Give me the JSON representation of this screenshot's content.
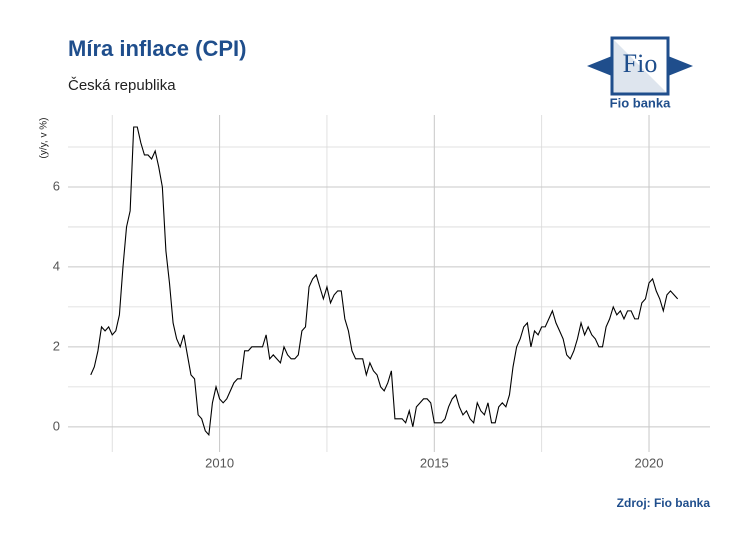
{
  "chart_data": {
    "type": "line",
    "title": "Míra inflace (CPI)",
    "subtitle": "Česká republika",
    "y_label": "(y/y, v %)",
    "source": "Zdroj: Fio banka",
    "logo": {
      "mark": "Fio",
      "name": "Fio banka"
    },
    "x": [
      2007,
      2007.083,
      2007.167,
      2007.25,
      2007.333,
      2007.417,
      2007.5,
      2007.583,
      2007.667,
      2007.75,
      2007.833,
      2007.917,
      2008,
      2008.083,
      2008.167,
      2008.25,
      2008.333,
      2008.417,
      2008.5,
      2008.583,
      2008.667,
      2008.75,
      2008.833,
      2008.917,
      2009,
      2009.083,
      2009.167,
      2009.25,
      2009.333,
      2009.417,
      2009.5,
      2009.583,
      2009.667,
      2009.75,
      2009.833,
      2009.917,
      2010,
      2010.083,
      2010.167,
      2010.25,
      2010.333,
      2010.417,
      2010.5,
      2010.583,
      2010.667,
      2010.75,
      2010.833,
      2010.917,
      2011,
      2011.083,
      2011.167,
      2011.25,
      2011.333,
      2011.417,
      2011.5,
      2011.583,
      2011.667,
      2011.75,
      2011.833,
      2011.917,
      2012,
      2012.083,
      2012.167,
      2012.25,
      2012.333,
      2012.417,
      2012.5,
      2012.583,
      2012.667,
      2012.75,
      2012.833,
      2012.917,
      2013,
      2013.083,
      2013.167,
      2013.25,
      2013.333,
      2013.417,
      2013.5,
      2013.583,
      2013.667,
      2013.75,
      2013.833,
      2013.917,
      2014,
      2014.083,
      2014.167,
      2014.25,
      2014.333,
      2014.417,
      2014.5,
      2014.583,
      2014.667,
      2014.75,
      2014.833,
      2014.917,
      2015,
      2015.083,
      2015.167,
      2015.25,
      2015.333,
      2015.417,
      2015.5,
      2015.583,
      2015.667,
      2015.75,
      2015.833,
      2015.917,
      2016,
      2016.083,
      2016.167,
      2016.25,
      2016.333,
      2016.417,
      2016.5,
      2016.583,
      2016.667,
      2016.75,
      2016.833,
      2016.917,
      2017,
      2017.083,
      2017.167,
      2017.25,
      2017.333,
      2017.417,
      2017.5,
      2017.583,
      2017.667,
      2017.75,
      2017.833,
      2017.917,
      2018,
      2018.083,
      2018.167,
      2018.25,
      2018.333,
      2018.417,
      2018.5,
      2018.583,
      2018.667,
      2018.75,
      2018.833,
      2018.917,
      2019,
      2019.083,
      2019.167,
      2019.25,
      2019.333,
      2019.417,
      2019.5,
      2019.583,
      2019.667,
      2019.75,
      2019.833,
      2019.917,
      2020,
      2020.083,
      2020.167,
      2020.25,
      2020.333,
      2020.417,
      2020.5,
      2020.583,
      2020.667
    ],
    "series": [
      {
        "color": "#000000",
        "values": [
          1.3,
          1.5,
          1.9,
          2.5,
          2.4,
          2.5,
          2.3,
          2.4,
          2.8,
          4.0,
          5.0,
          5.4,
          7.5,
          7.5,
          7.1,
          6.8,
          6.8,
          6.7,
          6.9,
          6.5,
          6.0,
          4.4,
          3.6,
          2.6,
          2.2,
          2.0,
          2.3,
          1.8,
          1.3,
          1.2,
          0.3,
          0.2,
          -0.1,
          -0.2,
          0.6,
          1.0,
          0.7,
          0.6,
          0.7,
          0.9,
          1.1,
          1.2,
          1.2,
          1.9,
          1.9,
          2.0,
          2.0,
          2.0,
          2.0,
          2.3,
          1.7,
          1.8,
          1.7,
          1.6,
          2.0,
          1.8,
          1.7,
          1.7,
          1.8,
          2.4,
          2.5,
          3.5,
          3.7,
          3.8,
          3.5,
          3.2,
          3.5,
          3.1,
          3.3,
          3.4,
          3.4,
          2.7,
          2.4,
          1.9,
          1.7,
          1.7,
          1.7,
          1.3,
          1.6,
          1.4,
          1.3,
          1.0,
          0.9,
          1.1,
          1.4,
          0.2,
          0.2,
          0.2,
          0.1,
          0.4,
          0.0,
          0.5,
          0.6,
          0.7,
          0.7,
          0.6,
          0.1,
          0.1,
          0.1,
          0.2,
          0.5,
          0.7,
          0.8,
          0.5,
          0.3,
          0.4,
          0.2,
          0.1,
          0.6,
          0.4,
          0.3,
          0.6,
          0.1,
          0.1,
          0.5,
          0.6,
          0.5,
          0.8,
          1.5,
          2.0,
          2.2,
          2.5,
          2.6,
          2.0,
          2.4,
          2.3,
          2.5,
          2.5,
          2.7,
          2.9,
          2.6,
          2.4,
          2.2,
          1.8,
          1.7,
          1.9,
          2.2,
          2.6,
          2.3,
          2.5,
          2.3,
          2.2,
          2.0,
          2.0,
          2.5,
          2.7,
          3.0,
          2.8,
          2.9,
          2.7,
          2.9,
          2.9,
          2.7,
          2.7,
          3.1,
          3.2,
          3.6,
          3.7,
          3.4,
          3.2,
          2.9,
          3.3,
          3.4,
          3.3,
          3.2
        ]
      }
    ],
    "xlim": [
      2006.47,
      2021.42
    ],
    "xticks": [
      2010,
      2015,
      2020
    ],
    "x_minor_grid": [
      2007.5,
      2012.5,
      2017.5
    ],
    "ylim": [
      -0.63,
      7.8
    ],
    "yticks": [
      0,
      2,
      4,
      6
    ],
    "y_minor_grid": [
      1,
      3,
      5,
      7
    ],
    "grid": true
  }
}
